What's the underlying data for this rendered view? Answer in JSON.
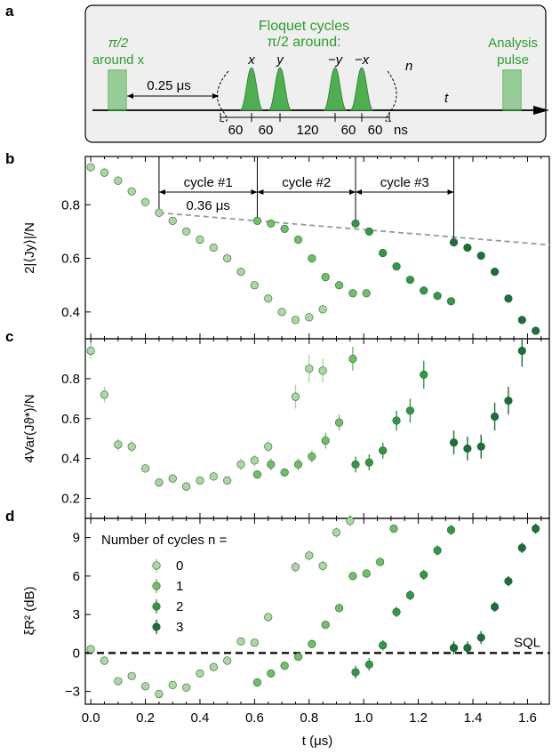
{
  "colors": {
    "n0": "#a9d9a2",
    "n1": "#6fbf66",
    "n2": "#2e9a46",
    "n3": "#19703a",
    "pulse": "#2aa02a",
    "box_bg": "#efefef",
    "dashed_line": "#999999"
  },
  "panel_a": {
    "letter": "a",
    "left_pulse_line1": "π/2",
    "left_pulse_line2": "around x",
    "floquet_line1": "Floquet cycles",
    "floquet_line2": "π/2 around:",
    "pulse_axes": [
      "x",
      "y",
      "−y",
      "−x"
    ],
    "n_label": "n",
    "t_label": "t",
    "delay_label": "0.25 μs",
    "analysis_line1": "Analysis",
    "analysis_line2": "pulse",
    "gaps": [
      "60",
      "60",
      "120",
      "60",
      "60"
    ],
    "gap_unit": "ns"
  },
  "chart_data": [
    {
      "panel": "b",
      "type": "scatter",
      "ylabel": "2|⟨Jy⟩|/N",
      "ylim": [
        0.3,
        0.98
      ],
      "yticks": [
        0.4,
        0.6,
        0.8
      ],
      "xlim": [
        -0.02,
        1.68
      ],
      "cycle_labels": [
        "cycle #1",
        "cycle #2",
        "cycle #3"
      ],
      "cycle_boundaries": [
        0.25,
        0.61,
        0.97,
        1.33
      ],
      "duration_label": "0.36 μs",
      "dashed_line": {
        "x": [
          0.25,
          1.68
        ],
        "y": [
          0.77,
          0.65
        ]
      },
      "series": [
        {
          "n": 0,
          "x": [
            0.0,
            0.05,
            0.1,
            0.15,
            0.2,
            0.25,
            0.3,
            0.35,
            0.4,
            0.45,
            0.5,
            0.55,
            0.6,
            0.65,
            0.7,
            0.75,
            0.8,
            0.85
          ],
          "y": [
            0.94,
            0.92,
            0.89,
            0.85,
            0.81,
            0.77,
            0.74,
            0.7,
            0.67,
            0.64,
            0.6,
            0.55,
            0.5,
            0.45,
            0.4,
            0.37,
            0.38,
            0.41
          ]
        },
        {
          "n": 1,
          "x": [
            0.61,
            0.66,
            0.71,
            0.76,
            0.81,
            0.86,
            0.91,
            0.96,
            1.01
          ],
          "y": [
            0.74,
            0.73,
            0.71,
            0.67,
            0.6,
            0.53,
            0.5,
            0.47,
            0.47
          ]
        },
        {
          "n": 2,
          "x": [
            0.97,
            1.02,
            1.07,
            1.12,
            1.17,
            1.22,
            1.27,
            1.32
          ],
          "y": [
            0.73,
            0.7,
            0.62,
            0.57,
            0.52,
            0.48,
            0.46,
            0.44
          ]
        },
        {
          "n": 3,
          "x": [
            1.33,
            1.38,
            1.43,
            1.48,
            1.53,
            1.58,
            1.63
          ],
          "y": [
            0.66,
            0.64,
            0.61,
            0.55,
            0.45,
            0.37,
            0.33
          ]
        }
      ]
    },
    {
      "panel": "c",
      "type": "scatter",
      "ylabel": "4Var(Jϑ*)/N",
      "ylim": [
        0.1,
        1.0
      ],
      "yticks": [
        0.2,
        0.4,
        0.6,
        0.8
      ],
      "xlim": [
        -0.02,
        1.68
      ],
      "series": [
        {
          "n": 0,
          "x": [
            0.0,
            0.05,
            0.1,
            0.15,
            0.2,
            0.25,
            0.3,
            0.35,
            0.4,
            0.45,
            0.5,
            0.55,
            0.6,
            0.65,
            0.75,
            0.8,
            0.85
          ],
          "y": [
            0.94,
            0.72,
            0.47,
            0.46,
            0.35,
            0.28,
            0.3,
            0.26,
            0.29,
            0.31,
            0.29,
            0.37,
            0.39,
            0.46,
            0.71,
            0.85,
            0.84
          ],
          "err": [
            0.04,
            0.04,
            0.03,
            0.03,
            0.02,
            0.02,
            0.02,
            0.02,
            0.02,
            0.02,
            0.02,
            0.03,
            0.03,
            0.03,
            0.06,
            0.07,
            0.06
          ]
        },
        {
          "n": 1,
          "x": [
            0.61,
            0.66,
            0.71,
            0.76,
            0.81,
            0.86,
            0.91,
            0.96
          ],
          "y": [
            0.32,
            0.37,
            0.33,
            0.37,
            0.41,
            0.49,
            0.58,
            0.9
          ],
          "err": [
            0.02,
            0.03,
            0.02,
            0.03,
            0.03,
            0.04,
            0.04,
            0.06
          ]
        },
        {
          "n": 2,
          "x": [
            0.97,
            1.02,
            1.07,
            1.12,
            1.17,
            1.22
          ],
          "y": [
            0.37,
            0.38,
            0.44,
            0.59,
            0.64,
            0.82
          ],
          "err": [
            0.04,
            0.04,
            0.04,
            0.05,
            0.06,
            0.07
          ]
        },
        {
          "n": 3,
          "x": [
            1.33,
            1.38,
            1.43,
            1.48,
            1.53,
            1.58
          ],
          "y": [
            0.48,
            0.45,
            0.46,
            0.61,
            0.69,
            0.94
          ],
          "err": [
            0.06,
            0.06,
            0.06,
            0.07,
            0.07,
            0.08
          ]
        }
      ]
    },
    {
      "panel": "d",
      "type": "scatter",
      "ylabel": "ξR² (dB)",
      "xlabel": "t (μs)",
      "ylim": [
        -4.0,
        10.5
      ],
      "yticks": [
        -3,
        0,
        3,
        6,
        9
      ],
      "xlim": [
        -0.02,
        1.68
      ],
      "xticks": [
        0.0,
        0.2,
        0.4,
        0.6,
        0.8,
        1.0,
        1.2,
        1.4,
        1.6
      ],
      "xtick_labels": [
        "0.0",
        "0.2",
        "0.4",
        "0.6",
        "0.8",
        "1.0",
        "1.2",
        "1.4",
        "1.6"
      ],
      "sql_label": "SQL",
      "sql_value": 0,
      "legend_title": "Number of cycles n =",
      "legend_entries": [
        "0",
        "1",
        "2",
        "3"
      ],
      "series": [
        {
          "n": 0,
          "x": [
            0.0,
            0.05,
            0.1,
            0.15,
            0.2,
            0.25,
            0.3,
            0.35,
            0.4,
            0.45,
            0.5,
            0.55,
            0.6,
            0.65,
            0.75,
            0.8,
            0.85,
            0.9,
            0.95
          ],
          "y": [
            0.3,
            -0.6,
            -2.2,
            -1.8,
            -2.6,
            -3.2,
            -2.5,
            -2.7,
            -1.6,
            -1.1,
            -0.6,
            0.9,
            0.8,
            2.8,
            6.7,
            7.6,
            6.8,
            9.4,
            10.3
          ],
          "err": [
            0.3,
            0.3,
            0.3,
            0.3,
            0.3,
            0.3,
            0.3,
            0.3,
            0.3,
            0.3,
            0.3,
            0.3,
            0.3,
            0.3,
            0.4,
            0.4,
            0.4,
            0.4,
            0.4
          ]
        },
        {
          "n": 1,
          "x": [
            0.61,
            0.66,
            0.71,
            0.76,
            0.81,
            0.86,
            0.91,
            0.96,
            1.01,
            1.06,
            1.11
          ],
          "y": [
            -2.3,
            -1.6,
            -1.0,
            -0.3,
            0.7,
            2.2,
            3.5,
            6.0,
            6.2,
            7.1,
            9.7
          ],
          "err": [
            0.3,
            0.3,
            0.3,
            0.3,
            0.3,
            0.3,
            0.3,
            0.3,
            0.3,
            0.3,
            0.3
          ]
        },
        {
          "n": 2,
          "x": [
            0.97,
            1.02,
            1.07,
            1.12,
            1.17,
            1.22,
            1.27,
            1.32
          ],
          "y": [
            -1.5,
            -0.9,
            0.6,
            3.2,
            4.5,
            6.1,
            8.0,
            9.6
          ],
          "err": [
            0.5,
            0.5,
            0.4,
            0.4,
            0.4,
            0.4,
            0.4,
            0.4
          ]
        },
        {
          "n": 3,
          "x": [
            1.33,
            1.38,
            1.43,
            1.48,
            1.53,
            1.58,
            1.63
          ],
          "y": [
            0.4,
            0.4,
            1.2,
            3.6,
            5.6,
            8.2,
            9.7
          ],
          "err": [
            0.5,
            0.5,
            0.5,
            0.4,
            0.4,
            0.4,
            0.4
          ]
        }
      ]
    }
  ]
}
